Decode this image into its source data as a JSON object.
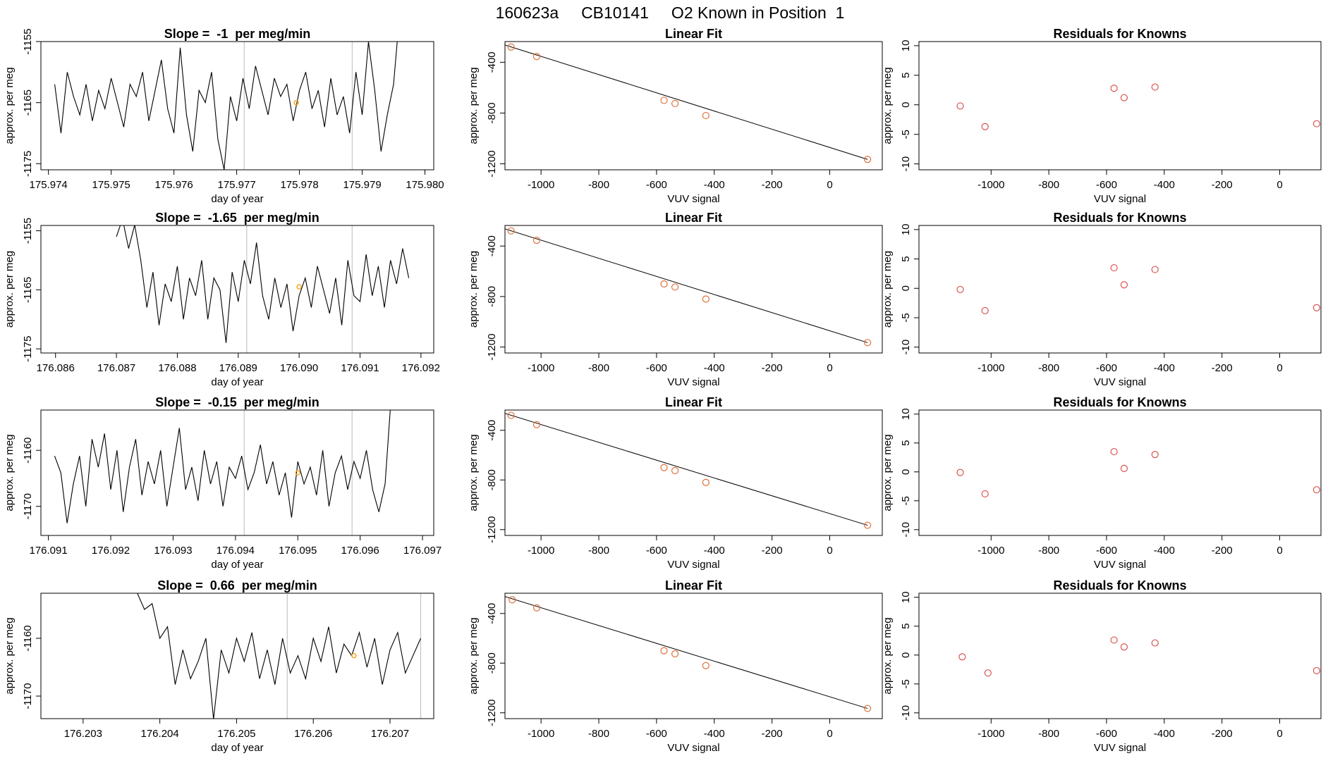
{
  "title": "160623a     CB10141     O2 Known in Position  1",
  "chart_data": [
    {
      "type": "line",
      "title": "Slope =  -1  per meg/min",
      "xlabel": "day of year",
      "ylabel": "approx. per meg",
      "color": "#000000",
      "x": [
        175.9741,
        175.9742,
        175.9743,
        175.9744,
        175.9745,
        175.9746,
        175.9747,
        175.9748,
        175.9749,
        175.975,
        175.9751,
        175.9752,
        175.9753,
        175.9754,
        175.9755,
        175.9756,
        175.9757,
        175.9758,
        175.9759,
        175.976,
        175.9761,
        175.9762,
        175.9763,
        175.9764,
        175.9765,
        175.9766,
        175.9767,
        175.9768,
        175.9769,
        175.977,
        175.9771,
        175.9772,
        175.9773,
        175.9774,
        175.9775,
        175.9776,
        175.9777,
        175.9778,
        175.9779,
        175.978,
        175.9781,
        175.9782,
        175.9783,
        175.9784,
        175.9785,
        175.9786,
        175.9787,
        175.9788,
        175.9789,
        175.979,
        175.9791,
        175.9792,
        175.9793,
        175.9794,
        175.9795,
        175.9796
      ],
      "values": [
        -1162,
        -1170,
        -1160,
        -1164,
        -1167,
        -1162,
        -1168,
        -1163,
        -1166,
        -1161,
        -1165,
        -1169,
        -1162,
        -1164,
        -1160,
        -1168,
        -1163,
        -1158,
        -1166,
        -1170,
        -1156,
        -1167,
        -1173,
        -1163,
        -1165,
        -1160,
        -1171,
        -1176,
        -1164,
        -1168,
        -1161,
        -1166,
        -1159,
        -1163,
        -1167,
        -1161,
        -1164,
        -1162,
        -1168,
        -1163,
        -1160,
        -1166,
        -1163,
        -1169,
        -1161,
        -1167,
        -1164,
        -1170,
        -1160,
        -1167,
        -1155,
        -1163,
        -1173,
        -1167,
        -1162,
        -1150
      ],
      "vlines": {
        "x": [
          175.97712,
          175.97884
        ],
        "color": "#bbbbbb"
      },
      "highlight": {
        "x": 175.97795,
        "y": -1165,
        "color": "#f5a623"
      },
      "xlim": [
        175.97388,
        175.98014
      ],
      "ylim": [
        -1176,
        -1155
      ],
      "xticks": [
        175.974,
        175.975,
        175.976,
        175.977,
        175.978,
        175.979,
        {
          "value": 175.98,
          "label": "175.980"
        }
      ],
      "yticks": [
        -1155,
        -1165,
        -1175
      ]
    },
    {
      "type": "scatter",
      "title": "Linear Fit",
      "xlabel": "VUV signal",
      "ylabel": "approx. per meg",
      "color": "#e0703a",
      "x": [
        -1104,
        -1015,
        -574,
        -536,
        -429,
        131
      ],
      "values": [
        -280,
        -355,
        -700,
        -725,
        -820,
        -1165
      ],
      "fit": {
        "x": [
          -1125,
          131
        ],
        "y": [
          -264,
          -1165
        ],
        "color": "#000000"
      },
      "xlim": [
        -1125,
        182
      ],
      "ylim": [
        -1247,
        -237
      ],
      "xticks": [
        -1000,
        -800,
        -600,
        -400,
        -200,
        0
      ],
      "yticks": [
        -400,
        -800,
        -1200
      ]
    },
    {
      "type": "scatter",
      "title": "Residuals for Knowns",
      "xlabel": "VUV signal",
      "ylabel": "approx. per meg",
      "color": "#d9534f",
      "x": [
        -1107,
        -1021,
        -574,
        -539,
        -432,
        128
      ],
      "values": [
        -0.2,
        -3.7,
        2.8,
        1.2,
        3.0,
        -3.2
      ],
      "xlim": [
        -1250,
        143
      ],
      "ylim": [
        -11,
        10.7
      ],
      "xticks": [
        -1000,
        -800,
        -600,
        -400,
        -200,
        0
      ],
      "yticks": [
        -10,
        -5,
        0,
        5,
        10
      ]
    },
    {
      "type": "line",
      "title": "Slope =  -1.65  per meg/min",
      "xlabel": "day of year",
      "ylabel": "approx. per meg",
      "color": "#000000",
      "x": [
        176.087,
        176.0871,
        176.0872,
        176.0873,
        176.0874,
        176.0875,
        176.0876,
        176.0877,
        176.0878,
        176.0879,
        176.088,
        176.0881,
        176.0882,
        176.0883,
        176.0884,
        176.0885,
        176.0886,
        176.0887,
        176.0888,
        176.0889,
        176.089,
        176.0891,
        176.0892,
        176.0893,
        176.0894,
        176.0895,
        176.0896,
        176.0897,
        176.0898,
        176.0899,
        176.09,
        176.0901,
        176.0902,
        176.0903,
        176.0904,
        176.0905,
        176.0906,
        176.0907,
        176.0908,
        176.0909,
        176.091,
        176.0911,
        176.0912,
        176.0913,
        176.0914,
        176.0915,
        176.0916,
        176.0917,
        176.0918
      ],
      "values": [
        -1156,
        -1153,
        -1158,
        -1154,
        -1160,
        -1168,
        -1162,
        -1171,
        -1164,
        -1167,
        -1161,
        -1170,
        -1163,
        -1166,
        -1160,
        -1170,
        -1163,
        -1165,
        -1174,
        -1162,
        -1167,
        -1160,
        -1164,
        -1157,
        -1166,
        -1170,
        -1163,
        -1168,
        -1164,
        -1172,
        -1166,
        -1163,
        -1168,
        -1161,
        -1165,
        -1169,
        -1163,
        -1171,
        -1160,
        -1166,
        -1167,
        -1159,
        -1166,
        -1161,
        -1168,
        -1160,
        -1164,
        -1158,
        -1163
      ],
      "vlines": {
        "x": [
          176.08914,
          176.09087
        ],
        "color": "#bbbbbb"
      },
      "highlight": {
        "x": 176.09,
        "y": -1164.5,
        "color": "#f5a623"
      },
      "xlim": [
        176.08576,
        176.09221
      ],
      "ylim": [
        -1175.7,
        -1154.1
      ],
      "xticks": [
        176.086,
        176.087,
        176.088,
        176.089,
        {
          "value": 176.09,
          "label": "176.090"
        },
        176.091,
        176.092
      ],
      "yticks": [
        -1155,
        -1165,
        -1175
      ]
    },
    {
      "type": "scatter",
      "title": "Linear Fit",
      "xlabel": "VUV signal",
      "ylabel": "approx. per meg",
      "color": "#e0703a",
      "x": [
        -1104,
        -1015,
        -574,
        -536,
        -429,
        131
      ],
      "values": [
        -280,
        -355,
        -700,
        -725,
        -820,
        -1165
      ],
      "fit": {
        "x": [
          -1125,
          131
        ],
        "y": [
          -264,
          -1165
        ],
        "color": "#000000"
      },
      "xlim": [
        -1125,
        182
      ],
      "ylim": [
        -1247,
        -237
      ],
      "xticks": [
        -1000,
        -800,
        -600,
        -400,
        -200,
        0
      ],
      "yticks": [
        -400,
        -800,
        -1200
      ]
    },
    {
      "type": "scatter",
      "title": "Residuals for Knowns",
      "xlabel": "VUV signal",
      "ylabel": "approx. per meg",
      "color": "#d9534f",
      "x": [
        -1107,
        -1021,
        -574,
        -539,
        -432,
        128
      ],
      "values": [
        -0.2,
        -3.8,
        3.5,
        0.6,
        3.2,
        -3.3
      ],
      "xlim": [
        -1250,
        143
      ],
      "ylim": [
        -11,
        10.7
      ],
      "xticks": [
        -1000,
        -800,
        -600,
        -400,
        -200,
        0
      ],
      "yticks": [
        -10,
        -5,
        0,
        5,
        10
      ]
    },
    {
      "type": "line",
      "title": "Slope =  -0.15  per meg/min",
      "xlabel": "day of year",
      "ylabel": "approx. per meg",
      "color": "#000000",
      "x": [
        176.0911,
        176.0912,
        176.0913,
        176.0914,
        176.0915,
        176.0916,
        176.0917,
        176.0918,
        176.0919,
        176.092,
        176.0921,
        176.0922,
        176.0923,
        176.0924,
        176.0925,
        176.0926,
        176.0927,
        176.0928,
        176.0929,
        176.093,
        176.0931,
        176.0932,
        176.0933,
        176.0934,
        176.0935,
        176.0936,
        176.0937,
        176.0938,
        176.0939,
        176.094,
        176.0941,
        176.0942,
        176.0943,
        176.0944,
        176.0945,
        176.0946,
        176.0947,
        176.0948,
        176.0949,
        176.095,
        176.0951,
        176.0952,
        176.0953,
        176.0954,
        176.0955,
        176.0956,
        176.0957,
        176.0958,
        176.0959,
        176.096,
        176.0961,
        176.0962,
        176.0963,
        176.0964,
        176.0965
      ],
      "values": [
        -1161,
        -1164,
        -1173,
        -1166,
        -1161,
        -1170,
        -1158,
        -1163,
        -1157,
        -1167,
        -1160,
        -1171,
        -1163,
        -1158,
        -1168,
        -1162,
        -1166,
        -1160,
        -1170,
        -1163,
        -1156,
        -1167,
        -1163,
        -1169,
        -1160,
        -1166,
        -1162,
        -1170,
        -1163,
        -1165,
        -1161,
        -1167,
        -1164,
        -1159,
        -1166,
        -1162,
        -1168,
        -1164,
        -1172,
        -1162,
        -1166,
        -1163,
        -1168,
        -1160,
        -1170,
        -1164,
        -1161,
        -1167,
        -1162,
        -1165,
        -1160,
        -1167,
        -1171,
        -1166,
        -1150
      ],
      "vlines": {
        "x": [
          176.09414,
          176.09587
        ],
        "color": "#bbbbbb"
      },
      "highlight": {
        "x": 176.095,
        "y": -1164,
        "color": "#f5a623"
      },
      "xlim": [
        176.09088,
        176.09718
      ],
      "ylim": [
        -1175.2,
        -1152.8
      ],
      "xticks": [
        176.091,
        176.092,
        176.093,
        176.094,
        176.095,
        176.096,
        176.097
      ],
      "yticks": [
        -1160,
        -1170
      ]
    },
    {
      "type": "scatter",
      "title": "Linear Fit",
      "xlabel": "VUV signal",
      "ylabel": "approx. per meg",
      "color": "#e0703a",
      "x": [
        -1104,
        -1015,
        -574,
        -536,
        -429,
        131
      ],
      "values": [
        -280,
        -355,
        -700,
        -725,
        -820,
        -1165
      ],
      "fit": {
        "x": [
          -1125,
          131
        ],
        "y": [
          -264,
          -1165
        ],
        "color": "#000000"
      },
      "xlim": [
        -1125,
        182
      ],
      "ylim": [
        -1247,
        -237
      ],
      "xticks": [
        -1000,
        -800,
        -600,
        -400,
        -200,
        0
      ],
      "yticks": [
        -400,
        -800,
        -1200
      ]
    },
    {
      "type": "scatter",
      "title": "Residuals for Knowns",
      "xlabel": "VUV signal",
      "ylabel": "approx. per meg",
      "color": "#d9534f",
      "x": [
        -1107,
        -1021,
        -574,
        -539,
        -432,
        128
      ],
      "values": [
        -0.1,
        -3.8,
        3.5,
        0.6,
        3.0,
        -3.1
      ],
      "xlim": [
        -1250,
        143
      ],
      "ylim": [
        -11,
        10.7
      ],
      "xticks": [
        -1000,
        -800,
        -600,
        -400,
        -200,
        0
      ],
      "yticks": [
        -10,
        -5,
        0,
        5,
        10
      ]
    },
    {
      "type": "line",
      "title": "Slope =  0.66  per meg/min",
      "xlabel": "day of year",
      "ylabel": "approx. per meg",
      "color": "#000000",
      "x": [
        176.2037,
        176.2038,
        176.2039,
        176.204,
        176.2041,
        176.2042,
        176.2043,
        176.2044,
        176.2045,
        176.2046,
        176.2047,
        176.2048,
        176.2049,
        176.205,
        176.2051,
        176.2052,
        176.2053,
        176.2054,
        176.2055,
        176.2056,
        176.2057,
        176.2058,
        176.2059,
        176.206,
        176.2061,
        176.2062,
        176.2063,
        176.2064,
        176.2065,
        176.2066,
        176.2067,
        176.2068,
        176.2069,
        176.207,
        176.2071,
        176.2072,
        176.2073,
        176.2074
      ],
      "values": [
        -1152,
        -1155,
        -1154,
        -1160,
        -1158,
        -1168,
        -1162,
        -1167,
        -1164,
        -1160,
        -1174,
        -1162,
        -1166,
        -1160,
        -1164,
        -1159,
        -1167,
        -1162,
        -1168,
        -1160,
        -1166,
        -1163,
        -1167,
        -1160,
        -1164,
        -1158,
        -1166,
        -1161,
        -1163,
        -1159,
        -1165,
        -1160,
        -1168,
        -1162,
        -1159,
        -1166,
        -1163,
        -1160
      ],
      "vlines": {
        "x": [
          176.20566,
          176.2074
        ],
        "color": "#bbbbbb"
      },
      "highlight": {
        "x": 176.20653,
        "y": -1163,
        "color": "#f5a623"
      },
      "xlim": [
        176.20245,
        176.20757
      ],
      "ylim": [
        -1173.9,
        -1152.2
      ],
      "xticks": [
        176.203,
        176.204,
        176.205,
        176.206,
        176.207
      ],
      "yticks": [
        -1160,
        -1170
      ]
    },
    {
      "type": "scatter",
      "title": "Linear Fit",
      "xlabel": "VUV signal",
      "ylabel": "approx. per meg",
      "color": "#e0703a",
      "x": [
        -1100,
        -1015,
        -574,
        -536,
        -429,
        131
      ],
      "values": [
        -290,
        -355,
        -700,
        -725,
        -820,
        -1165
      ],
      "fit": {
        "x": [
          -1125,
          131
        ],
        "y": [
          -264,
          -1165
        ],
        "color": "#000000"
      },
      "xlim": [
        -1125,
        182
      ],
      "ylim": [
        -1247,
        -237
      ],
      "xticks": [
        -1000,
        -800,
        -600,
        -400,
        -200,
        0
      ],
      "yticks": [
        -400,
        -800,
        -1200
      ]
    },
    {
      "type": "scatter",
      "title": "Residuals for Knowns",
      "xlabel": "VUV signal",
      "ylabel": "approx. per meg",
      "color": "#d9534f",
      "x": [
        -1100,
        -1011,
        -574,
        -539,
        -432,
        128
      ],
      "values": [
        -0.3,
        -3.1,
        2.6,
        1.4,
        2.1,
        -2.7
      ],
      "xlim": [
        -1250,
        143
      ],
      "ylim": [
        -11,
        10.7
      ],
      "xticks": [
        -1000,
        -800,
        -600,
        -400,
        -200,
        0
      ],
      "yticks": [
        -10,
        -5,
        0,
        5,
        10
      ]
    }
  ]
}
